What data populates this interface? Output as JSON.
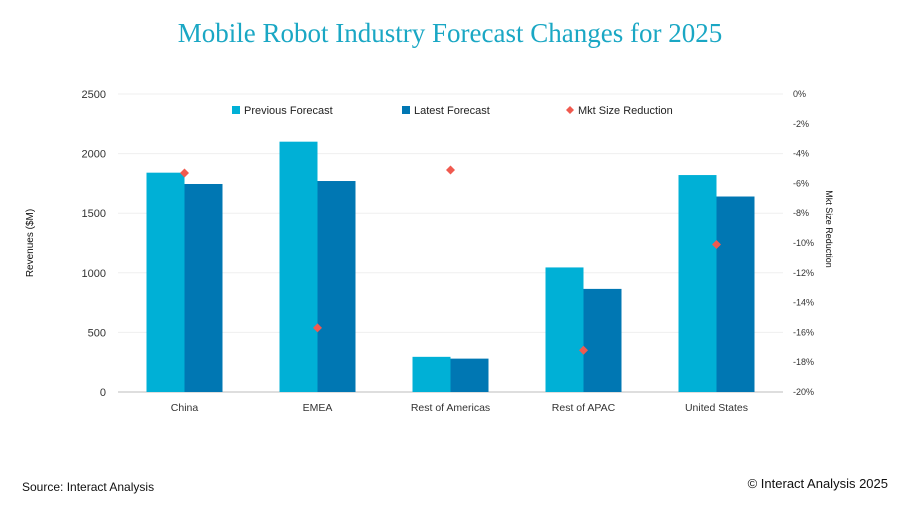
{
  "title": "Mobile Robot Industry Forecast Changes for 2025",
  "colors": {
    "title": "#1aa7c4",
    "previous": "#00b0d6",
    "latest": "#0077b3",
    "reduction": "#f05a4f"
  },
  "footer": {
    "source": "Source: Interact Analysis",
    "copyright": "© Interact Analysis 2025"
  },
  "chart_data": {
    "type": "bar",
    "title": "Mobile Robot Industry Forecast Changes for 2025",
    "categories": [
      "China",
      "EMEA",
      "Rest of Americas",
      "Rest of APAC",
      "United States"
    ],
    "series": [
      {
        "name": "Previous Forecast",
        "type": "bar",
        "axis": "left",
        "values": [
          1840,
          2100,
          295,
          1045,
          1820
        ]
      },
      {
        "name": "Latest Forecast",
        "type": "bar",
        "axis": "left",
        "values": [
          1745,
          1770,
          280,
          865,
          1640
        ]
      },
      {
        "name": "Mkt Size Reduction",
        "type": "scatter",
        "marker": "diamond",
        "axis": "right",
        "values": [
          -5.3,
          -15.7,
          -5.1,
          -17.2,
          -10.1
        ]
      }
    ],
    "ylabel": "Revenues ($M)",
    "ylim": [
      0,
      2500
    ],
    "yticks": [
      0,
      500,
      1000,
      1500,
      2000,
      2500
    ],
    "y2label": "Mkt Size Reduction",
    "y2lim": [
      -20,
      0
    ],
    "y2ticks": [
      "0%",
      "-2%",
      "-4%",
      "-6%",
      "-8%",
      "-10%",
      "-12%",
      "-14%",
      "-16%",
      "-18%",
      "-20%"
    ],
    "grid": true,
    "legend": "top"
  }
}
